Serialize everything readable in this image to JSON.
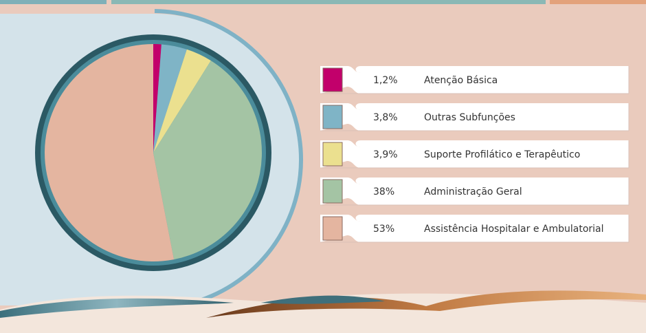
{
  "chart_data": {
    "type": "pie",
    "categories": [
      "Atenção Básica",
      "Outras Subfunções",
      "Suporte Profilático e Terapêutico",
      "Administração Geral",
      "Assistência Hospitalar e Ambulatorial"
    ],
    "values": [
      1.2,
      3.8,
      3.9,
      38,
      53
    ],
    "value_labels": [
      "1,2%",
      "3,8%",
      "3,9%",
      "38%",
      "53%"
    ],
    "colors": [
      "#c2006b",
      "#7fb4c6",
      "#ebe08f",
      "#a4c4a4",
      "#e4b5a0"
    ]
  }
}
